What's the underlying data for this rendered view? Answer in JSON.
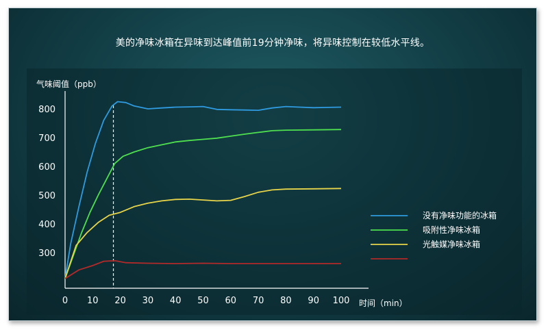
{
  "caption": "美的净味冰箱在异味到达峰值前19分钟净味，将异味控制在较低水平线。",
  "chart_data": {
    "type": "line",
    "ylabel": "气味阈值（ppb）",
    "xlabel": "时间（min）",
    "xlim": [
      0,
      100
    ],
    "ylim": [
      200,
      850
    ],
    "x_ticks": [
      0,
      10,
      20,
      30,
      40,
      50,
      60,
      70,
      80,
      90,
      100
    ],
    "y_ticks": [
      300,
      400,
      500,
      600,
      700,
      800
    ],
    "marker_x": 17.5,
    "grid": false,
    "legend_position": "right",
    "series": [
      {
        "name": "没有净味功能的冰箱",
        "color": "#2f9be0",
        "x": [
          0,
          2,
          5,
          8,
          11,
          14,
          17,
          19,
          22,
          25,
          30,
          35,
          40,
          45,
          50,
          55,
          60,
          65,
          70,
          75,
          80,
          85,
          90,
          95,
          100
        ],
        "y": [
          210,
          330,
          460,
          580,
          680,
          760,
          810,
          825,
          822,
          810,
          800,
          803,
          806,
          807,
          808,
          798,
          797,
          796,
          795,
          803,
          808,
          806,
          804,
          805,
          806
        ]
      },
      {
        "name": "吸附性净味冰箱",
        "color": "#4fe04f",
        "x": [
          0,
          3,
          6,
          9,
          12,
          15,
          18,
          21,
          25,
          30,
          35,
          40,
          45,
          50,
          55,
          60,
          65,
          70,
          75,
          80,
          90,
          100
        ],
        "y": [
          210,
          290,
          370,
          440,
          500,
          555,
          610,
          635,
          650,
          665,
          675,
          685,
          690,
          694,
          698,
          705,
          712,
          718,
          724,
          726,
          727,
          728
        ]
      },
      {
        "name": "光触媒净味冰箱",
        "color": "#e8d54a",
        "x": [
          0,
          4,
          8,
          12,
          16,
          20,
          25,
          30,
          35,
          40,
          45,
          50,
          55,
          60,
          65,
          70,
          75,
          80,
          90,
          100
        ],
        "y": [
          210,
          325,
          370,
          405,
          430,
          440,
          460,
          472,
          480,
          485,
          486,
          483,
          480,
          482,
          495,
          510,
          518,
          521,
          522,
          523
        ]
      },
      {
        "name": "",
        "color": "#b22a2a",
        "x": [
          0,
          5,
          10,
          14,
          18,
          22,
          30,
          40,
          50,
          60,
          70,
          80,
          90,
          100
        ],
        "y": [
          210,
          240,
          255,
          270,
          272,
          265,
          263,
          262,
          263,
          262,
          262,
          262,
          262,
          262
        ]
      }
    ]
  }
}
